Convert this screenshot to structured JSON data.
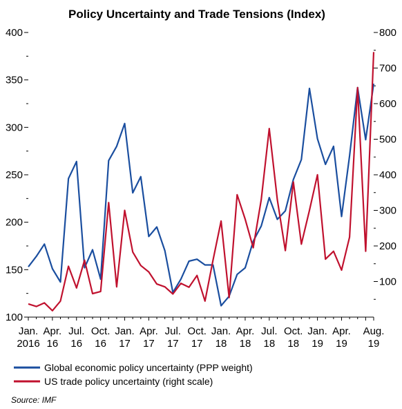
{
  "chart_data": {
    "type": "line",
    "title": "Policy Uncertainty and Trade Tensions (Index)",
    "x_tick_labels": [
      [
        "Jan.",
        "2016"
      ],
      [
        "Apr.",
        "16"
      ],
      [
        "Jul.",
        "16"
      ],
      [
        "Oct.",
        "16"
      ],
      [
        "Jan.",
        "17"
      ],
      [
        "Apr.",
        "17"
      ],
      [
        "Jul.",
        "17"
      ],
      [
        "Oct.",
        "17"
      ],
      [
        "Jan.",
        "18"
      ],
      [
        "Apr.",
        "18"
      ],
      [
        "Jul.",
        "18"
      ],
      [
        "Oct.",
        "18"
      ],
      [
        "Jan.",
        "19"
      ],
      [
        "Apr.",
        "19"
      ],
      [
        "Aug.",
        "19"
      ]
    ],
    "left_axis": {
      "ylim": [
        100,
        400
      ],
      "ticks": [
        100,
        150,
        200,
        250,
        300,
        350,
        400
      ]
    },
    "right_axis": {
      "ylim": [
        0,
        800
      ],
      "ticks": [
        100,
        200,
        300,
        400,
        500,
        600,
        700,
        800
      ]
    },
    "x": [
      "2016-01",
      "2016-02",
      "2016-03",
      "2016-04",
      "2016-05",
      "2016-06",
      "2016-07",
      "2016-08",
      "2016-09",
      "2016-10",
      "2016-11",
      "2016-12",
      "2017-01",
      "2017-02",
      "2017-03",
      "2017-04",
      "2017-05",
      "2017-06",
      "2017-07",
      "2017-08",
      "2017-09",
      "2017-10",
      "2017-11",
      "2017-12",
      "2018-01",
      "2018-02",
      "2018-03",
      "2018-04",
      "2018-05",
      "2018-06",
      "2018-07",
      "2018-08",
      "2018-09",
      "2018-10",
      "2018-11",
      "2018-12",
      "2019-01",
      "2019-02",
      "2019-03",
      "2019-04",
      "2019-05",
      "2019-06",
      "2019-07",
      "2019-08"
    ],
    "series": [
      {
        "name": "Global economic policy uncertainty (PPP weight)",
        "axis": "left",
        "color": "#1a4e9f",
        "values": [
          153,
          164,
          177,
          151,
          137,
          246,
          264,
          152,
          171,
          140,
          265,
          280,
          304,
          231,
          248,
          185,
          195,
          170,
          126,
          140,
          159,
          161,
          155,
          155,
          112,
          122,
          145,
          152,
          180,
          196,
          226,
          203,
          212,
          245,
          266,
          341,
          288,
          261,
          280,
          206,
          270,
          342,
          287,
          346
        ]
      },
      {
        "name": "US trade policy uncertainty (right scale)",
        "axis": "right",
        "color": "#c0112e",
        "values": [
          37,
          30,
          40,
          18,
          45,
          143,
          82,
          160,
          66,
          72,
          322,
          85,
          300,
          183,
          145,
          127,
          93,
          85,
          65,
          95,
          84,
          117,
          45,
          160,
          270,
          55,
          344,
          275,
          195,
          330,
          530,
          330,
          187,
          380,
          205,
          300,
          400,
          163,
          185,
          132,
          225,
          645,
          185,
          745
        ]
      }
    ],
    "source": "Source: IMF"
  }
}
